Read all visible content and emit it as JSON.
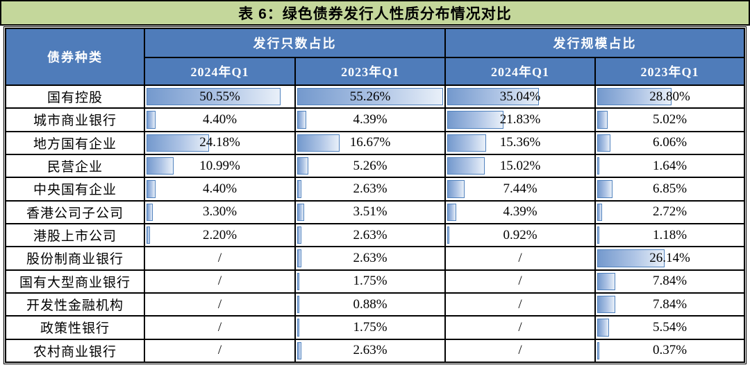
{
  "chart_data": {
    "type": "table",
    "title": "表 6：绿色债券发行人性质分布情况对比",
    "row_header": "债券种类",
    "column_groups": [
      {
        "label": "发行只数占比",
        "sub_columns": [
          "2024年Q1",
          "2023年Q1"
        ]
      },
      {
        "label": "发行规模占比",
        "sub_columns": [
          "2024年Q1",
          "2023年Q1"
        ]
      }
    ],
    "value_unit": "%",
    "bar_scale_max": 55.26,
    "missing_value_label": "/",
    "rows": [
      {
        "label": "国有控股",
        "values": [
          50.55,
          55.26,
          35.04,
          28.8
        ]
      },
      {
        "label": "城市商业银行",
        "values": [
          4.4,
          4.39,
          21.83,
          5.02
        ]
      },
      {
        "label": "地方国有企业",
        "values": [
          24.18,
          16.67,
          15.36,
          6.06
        ]
      },
      {
        "label": "民营企业",
        "values": [
          10.99,
          5.26,
          15.02,
          1.64
        ]
      },
      {
        "label": "中央国有企业",
        "values": [
          4.4,
          2.63,
          7.44,
          6.85
        ]
      },
      {
        "label": "香港公司子公司",
        "values": [
          3.3,
          3.51,
          4.39,
          2.72
        ]
      },
      {
        "label": "港股上市公司",
        "values": [
          2.2,
          2.63,
          0.92,
          1.18
        ]
      },
      {
        "label": "股份制商业银行",
        "values": [
          null,
          2.63,
          null,
          26.14
        ]
      },
      {
        "label": "国有大型商业银行",
        "values": [
          null,
          1.75,
          null,
          7.84
        ]
      },
      {
        "label": "开发性金融机构",
        "values": [
          null,
          0.88,
          null,
          7.84
        ]
      },
      {
        "label": "政策性银行",
        "values": [
          null,
          1.75,
          null,
          5.54
        ]
      },
      {
        "label": "农村商业银行",
        "values": [
          null,
          2.63,
          null,
          0.37
        ]
      }
    ]
  },
  "colors": {
    "title_bg": "#c4d79b",
    "header_bg": "#4f7cba",
    "header_text": "#ffffff",
    "bar_border": "#4f81bd",
    "bar_gradient_start": "#7499cd",
    "bar_gradient_end": "#e9f0f9",
    "grid_line": "#000000"
  }
}
